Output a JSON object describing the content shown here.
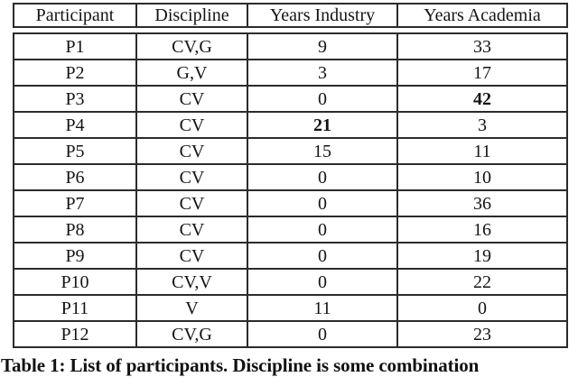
{
  "table": {
    "columns": [
      {
        "label": "Participant"
      },
      {
        "label": "Discipline"
      },
      {
        "label": "Years Industry"
      },
      {
        "label": "Years Academia"
      }
    ],
    "rows": [
      {
        "cells": [
          "P1",
          "CV,G",
          "9",
          "33"
        ],
        "bold_cols": []
      },
      {
        "cells": [
          "P2",
          "G,V",
          "3",
          "17"
        ],
        "bold_cols": []
      },
      {
        "cells": [
          "P3",
          "CV",
          "0",
          "42"
        ],
        "bold_cols": [
          3
        ]
      },
      {
        "cells": [
          "P4",
          "CV",
          "21",
          "3"
        ],
        "bold_cols": [
          2
        ]
      },
      {
        "cells": [
          "P5",
          "CV",
          "15",
          "11"
        ],
        "bold_cols": []
      },
      {
        "cells": [
          "P6",
          "CV",
          "0",
          "10"
        ],
        "bold_cols": []
      },
      {
        "cells": [
          "P7",
          "CV",
          "0",
          "36"
        ],
        "bold_cols": []
      },
      {
        "cells": [
          "P8",
          "CV",
          "0",
          "16"
        ],
        "bold_cols": []
      },
      {
        "cells": [
          "P9",
          "CV",
          "0",
          "19"
        ],
        "bold_cols": []
      },
      {
        "cells": [
          "P10",
          "CV,V",
          "0",
          "22"
        ],
        "bold_cols": []
      },
      {
        "cells": [
          "P11",
          "V",
          "11",
          "0"
        ],
        "bold_cols": []
      },
      {
        "cells": [
          "P12",
          "CV,G",
          "0",
          "23"
        ],
        "bold_cols": []
      }
    ]
  },
  "caption": "Table 1: List of participants. Discipline is some combination"
}
